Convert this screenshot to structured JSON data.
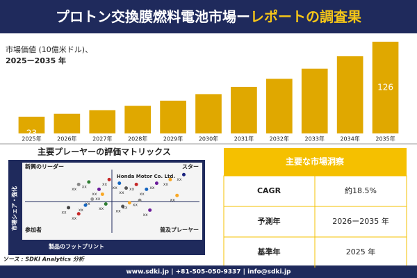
{
  "header": {
    "title_main": "プロトン交換膜燃料電池市場ー",
    "title_accent": "レポートの調査果"
  },
  "chart_data": [
    {
      "type": "bar",
      "subtitle_line1": "市場価値 (10億米ドル)、",
      "subtitle_line2": "2025ー2035 年",
      "categories": [
        "2025年",
        "2026年",
        "2027年",
        "2028年",
        "2029年",
        "2030年",
        "2031年",
        "2032年",
        "2033年",
        "2034年",
        "2035年"
      ],
      "values": [
        23,
        27,
        32,
        38,
        45,
        54,
        64,
        75,
        89,
        106,
        126
      ],
      "value_labels": [
        "23",
        null,
        null,
        null,
        null,
        null,
        null,
        null,
        null,
        null,
        "126"
      ],
      "color": "#e0a800"
    },
    {
      "type": "scatter",
      "title": "主要プレーヤーの評価マトリックス",
      "quadrants": [
        "新興のリーダー",
        "スター",
        "参加者",
        "普及プレーヤー"
      ],
      "annotation": "Honda Motor Co. Ltd.",
      "xlabel": "製品のフットプリント",
      "ylabel": "市場シェア・強化",
      "xlim": [
        0,
        100
      ],
      "ylim": [
        0,
        100
      ],
      "x": [
        30,
        36,
        42,
        48,
        54,
        38,
        44,
        58,
        64,
        70,
        76,
        84,
        92,
        24,
        30,
        34,
        46,
        56,
        60,
        66,
        72,
        88
      ],
      "y": [
        78,
        82,
        70,
        86,
        80,
        54,
        62,
        72,
        78,
        70,
        80,
        86,
        94,
        40,
        30,
        44,
        46,
        42,
        48,
        52,
        36,
        60
      ],
      "colors": [
        "#888",
        "#2e7d32",
        "#6a1b9a",
        "#c62828",
        "#1565c0",
        "#999",
        "#f9a825",
        "#555",
        "#c62828",
        "#1565c0",
        "#6a1b9a",
        "#f9a825",
        "#1a237e",
        "#444",
        "#c62828",
        "#1565c0",
        "#2e7d32",
        "#555",
        "#f9a825",
        "#888",
        "#6a1b9a",
        "#f9a825"
      ],
      "labels": [
        "xx",
        "xx",
        "xx",
        "xx",
        "xx",
        "xx",
        "xx",
        "xx",
        "xx",
        "xx",
        "xx",
        "xx",
        "xx",
        "xx",
        "xx",
        "xx",
        "xx",
        "xx",
        "xx",
        "xx",
        "xx",
        "xx"
      ]
    }
  ],
  "table": {
    "title": "主要な市場洞察",
    "rows": [
      [
        "CAGR",
        "約18.5%"
      ],
      [
        "予測年",
        "2026ー2035 年"
      ],
      [
        "基準年",
        "2025 年"
      ]
    ]
  },
  "source": "ソース : SDKI Analytics 分析",
  "footer": "www.sdki.jp | +81-505-050-9337 | info@sdki.jp"
}
